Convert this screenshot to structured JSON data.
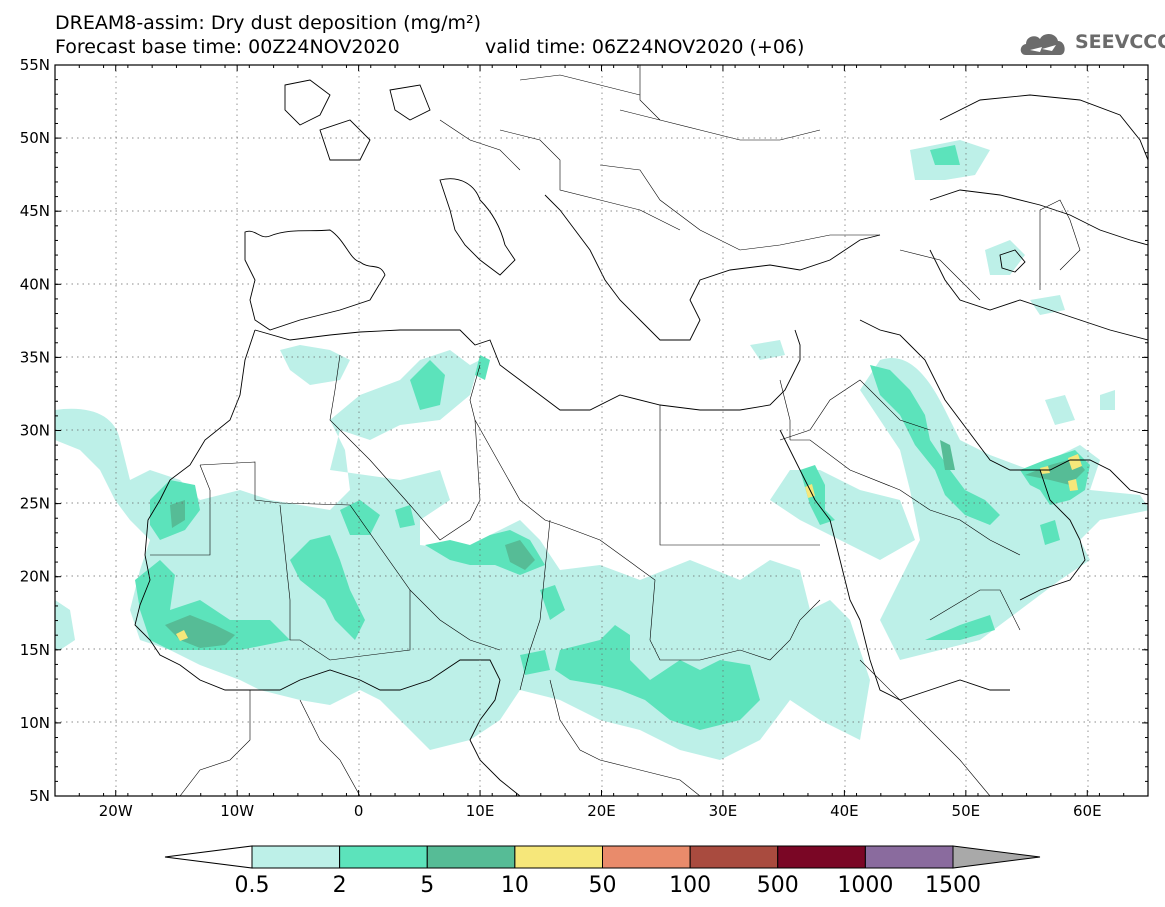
{
  "title": {
    "line1": "DREAM8-assim: Dry dust deposition (mg/m²)",
    "line2": "Forecast base time: 00Z24NOV2020",
    "valid": "valid time: 06Z24NOV2020 (+06)"
  },
  "logo": {
    "text": "SEEVCCC",
    "icon": "cloud-logo-icon"
  },
  "axes": {
    "lat_labels": [
      "55N",
      "50N",
      "45N",
      "40N",
      "35N",
      "30N",
      "25N",
      "20N",
      "15N",
      "10N",
      "5N"
    ],
    "lon_labels": [
      "20W",
      "10W",
      "0",
      "10E",
      "20E",
      "30E",
      "40E",
      "50E",
      "60E"
    ],
    "lat_range": [
      5,
      55
    ],
    "lon_range": [
      -25,
      65
    ],
    "grid": "dotted"
  },
  "colorbar": {
    "labels": [
      "0.5",
      "2",
      "5",
      "10",
      "50",
      "100",
      "500",
      "1000",
      "1500"
    ],
    "colors": [
      "#ffffff",
      "#bdf0e8",
      "#5ce3bb",
      "#56bc96",
      "#f6e77a",
      "#e98b6b",
      "#a94b3f",
      "#7a0625",
      "#8a6b9e",
      "#a9a9a9"
    ]
  }
}
